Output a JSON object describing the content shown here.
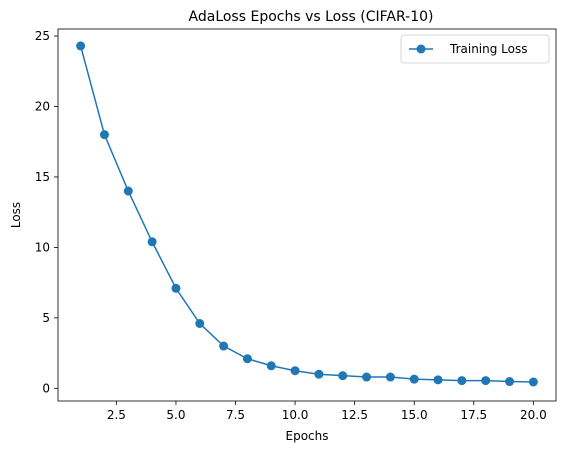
{
  "chart_data": {
    "type": "line",
    "title": "AdaLoss Epochs vs Loss (CIFAR-10)",
    "xlabel": "Epochs",
    "ylabel": "Loss",
    "xlim": [
      0.05,
      20.95
    ],
    "ylim": [
      -0.9,
      25.5
    ],
    "xticks": [
      2.5,
      5.0,
      7.5,
      10.0,
      12.5,
      15.0,
      17.5,
      20.0
    ],
    "xtick_labels": [
      "2.5",
      "5.0",
      "7.5",
      "10.0",
      "12.5",
      "15.0",
      "17.5",
      "20.0"
    ],
    "yticks": [
      0,
      5,
      10,
      15,
      20,
      25
    ],
    "ytick_labels": [
      "0",
      "5",
      "10",
      "15",
      "20",
      "25"
    ],
    "grid": false,
    "legend_position": "top-right",
    "series": [
      {
        "name": "Training Loss",
        "color": "#1f77b4",
        "marker": "circle",
        "x": [
          1,
          2,
          3,
          4,
          5,
          6,
          7,
          8,
          9,
          10,
          11,
          12,
          13,
          14,
          15,
          16,
          17,
          18,
          19,
          20
        ],
        "y": [
          24.3,
          18.0,
          14.0,
          10.4,
          7.1,
          4.6,
          3.0,
          2.1,
          1.6,
          1.25,
          1.0,
          0.9,
          0.8,
          0.8,
          0.65,
          0.6,
          0.55,
          0.55,
          0.48,
          0.45
        ]
      }
    ]
  }
}
